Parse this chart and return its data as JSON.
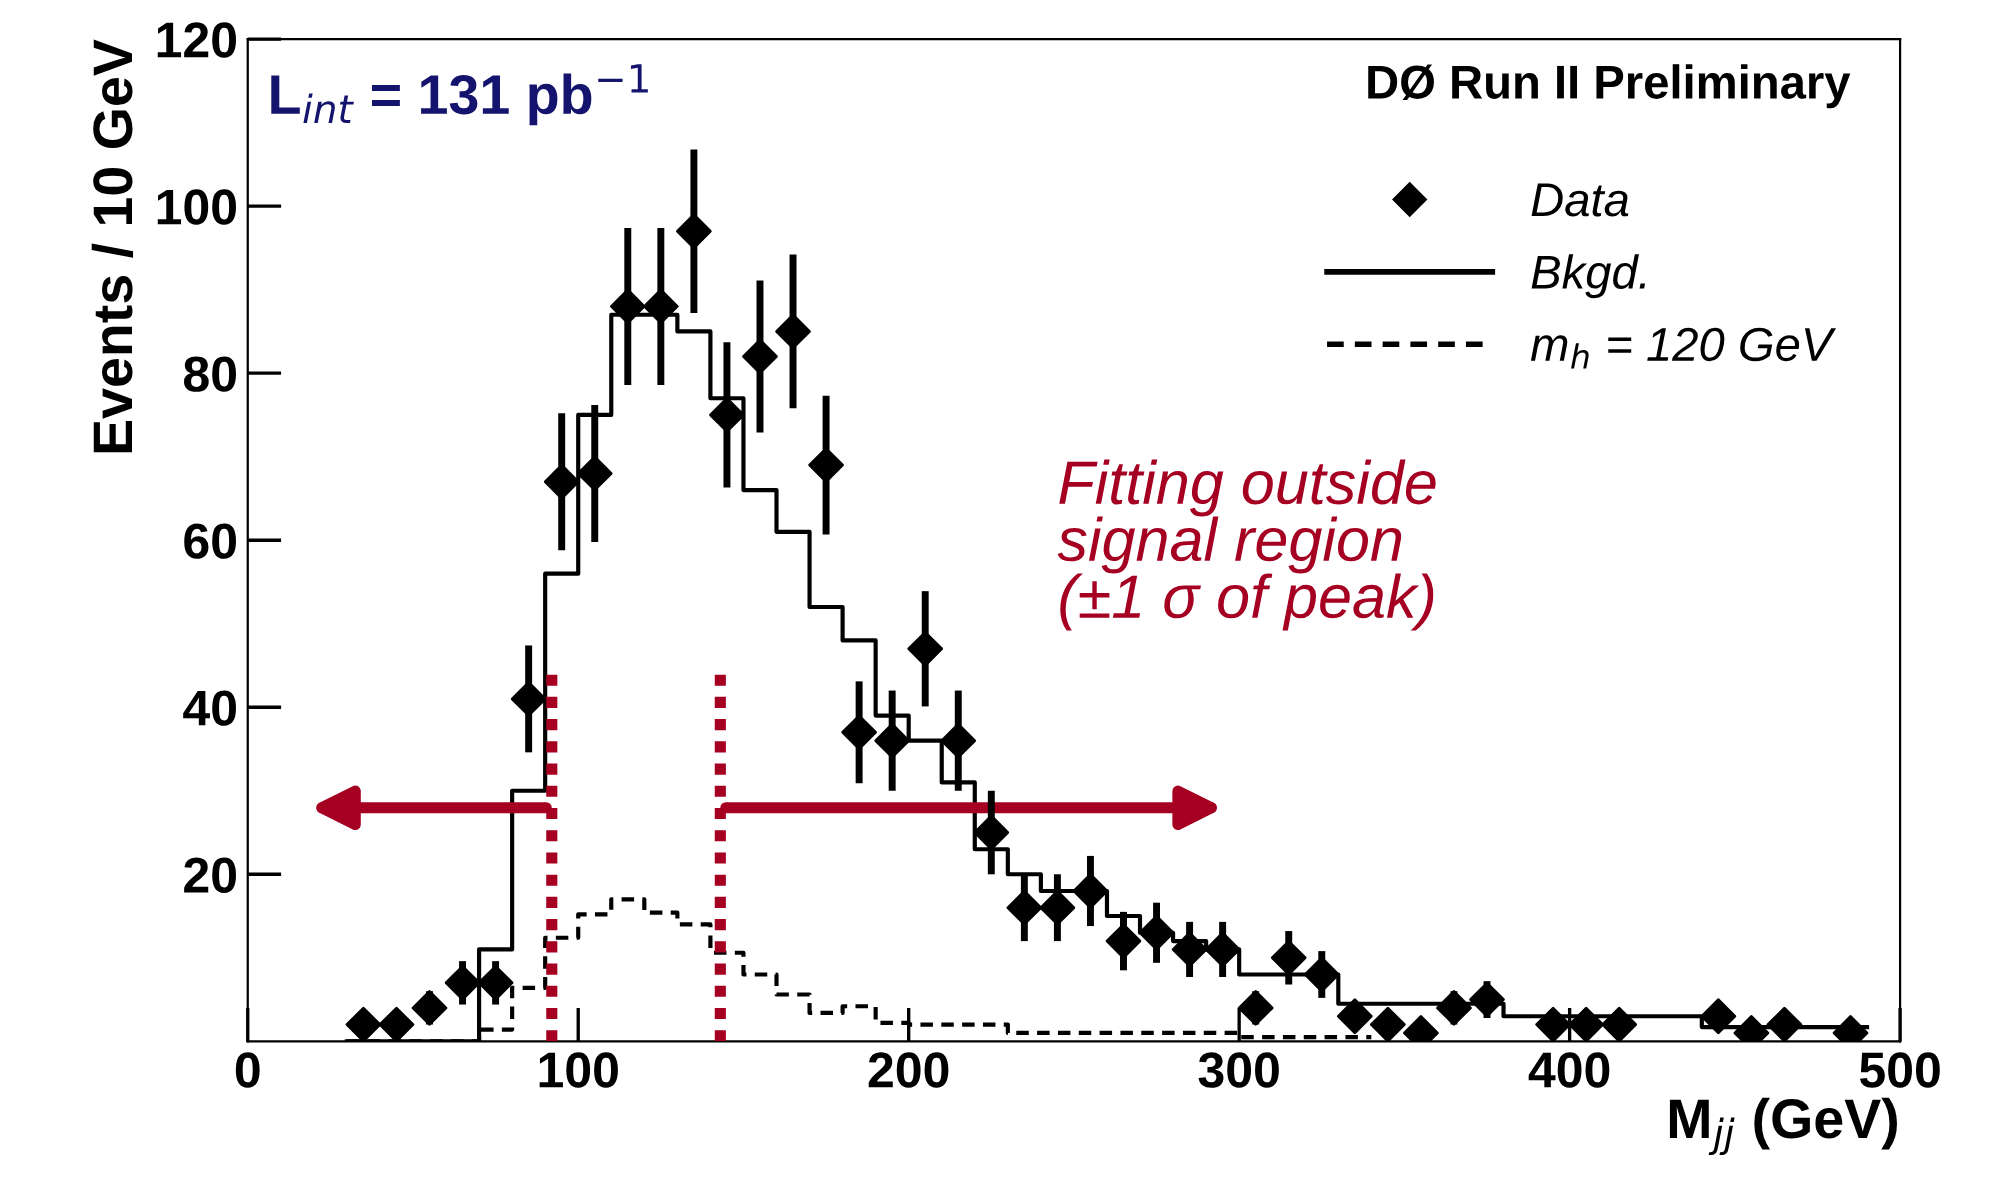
{
  "chart_data": {
    "type": "scatter",
    "xlabel": "M$_{jj}$ (GeV)",
    "ylabel": "Events / 10 GeV",
    "xlim": [
      0,
      500
    ],
    "ylim": [
      0,
      120
    ],
    "xticks": [
      0,
      100,
      200,
      300,
      400,
      500
    ],
    "yticks": [
      20,
      40,
      60,
      80,
      100,
      120
    ],
    "grid": false,
    "legend": "top right",
    "annotations": [
      "L$_{int}$ = 131 pb$^{−1}$",
      "DØ Run II Preliminary",
      "Fitting outside\nsignal region\n(±1 σ of peak)"
    ],
    "ref_lines": [
      {
        "axis": "x",
        "value": 92,
        "label": null,
        "color": "#a50021",
        "line_style": "dotted"
      },
      {
        "axis": "x",
        "value": 143,
        "label": null,
        "color": "#a50021",
        "line_style": "dotted"
      }
    ],
    "series": [
      {
        "name": "Data",
        "color": "#000000",
        "marker": "diamond",
        "x": [
          35,
          45,
          55,
          65,
          75,
          85,
          95,
          105,
          115,
          125,
          135,
          145,
          155,
          165,
          175,
          185,
          195,
          205,
          215,
          225,
          235,
          245,
          255,
          265,
          275,
          285,
          295,
          305,
          315,
          325,
          335,
          345,
          355,
          365,
          375,
          385,
          395,
          405,
          415,
          425,
          435,
          445,
          455,
          465,
          475,
          485
        ],
        "values": [
          2,
          2,
          4,
          7,
          7,
          41,
          67,
          68,
          88,
          88,
          97,
          75,
          82,
          85,
          69,
          37,
          36,
          47,
          36,
          25,
          16,
          16,
          18,
          12,
          13,
          11,
          11,
          4,
          10,
          8,
          3,
          2,
          1,
          4,
          5,
          null,
          2,
          2,
          2,
          null,
          null,
          3,
          1,
          2,
          null,
          1
        ],
        "errors": [
          1.4,
          1.4,
          2,
          2.6,
          2.6,
          6.4,
          8.2,
          8.2,
          9.4,
          9.4,
          9.8,
          8.7,
          9.1,
          9.2,
          8.3,
          6.1,
          6,
          6.9,
          6,
          5,
          4,
          4,
          4.2,
          3.5,
          3.6,
          3.3,
          3.3,
          2,
          3.2,
          2.8,
          1.7,
          1.4,
          1,
          2,
          2.2,
          null,
          1.4,
          1.4,
          1.4,
          null,
          null,
          1.7,
          1,
          1.4,
          null,
          1
        ]
      },
      {
        "name": "Bkgd.",
        "type": "step",
        "color": "#000000",
        "line_style": "solid",
        "x": [
          30,
          40,
          50,
          60,
          70,
          80,
          90,
          100,
          110,
          120,
          130,
          140,
          150,
          160,
          170,
          180,
          190,
          200,
          210,
          220,
          230,
          240,
          250,
          260,
          270,
          280,
          290,
          300,
          310,
          320,
          330,
          340,
          350,
          360,
          370,
          380,
          390,
          400,
          410,
          420,
          430,
          440,
          450,
          460,
          470,
          480,
          490
        ],
        "values": [
          0,
          0,
          0,
          0,
          11,
          30,
          56,
          75,
          87,
          87,
          85,
          77,
          66,
          61,
          52,
          48,
          39,
          36,
          31,
          23,
          20,
          18,
          18,
          15,
          13,
          12,
          11,
          8,
          8,
          8,
          4.5,
          4.5,
          4.5,
          4.5,
          4.5,
          3,
          3,
          3,
          3,
          3,
          3,
          1.7,
          1.7,
          1.7,
          1.7,
          1.7,
          1.7
        ]
      },
      {
        "name": "m$_{h}$ = 120 GeV",
        "type": "step",
        "color": "#000000",
        "line_style": "dashed",
        "x": [
          30,
          40,
          50,
          60,
          70,
          80,
          90,
          100,
          110,
          120,
          130,
          140,
          150,
          160,
          170,
          180,
          190,
          200,
          210,
          220,
          230,
          240,
          250,
          260,
          270,
          280,
          290,
          300,
          310,
          320,
          330,
          340
        ],
        "values": [
          0,
          0,
          0,
          0,
          1.4,
          6.4,
          12.4,
          15.2,
          17,
          15.4,
          14,
          10.6,
          8,
          5.6,
          3.4,
          4.2,
          2.2,
          2,
          2,
          2,
          1,
          1,
          1,
          1,
          1,
          1,
          1,
          0.5,
          0.5,
          0.5,
          0.5,
          0.5
        ]
      }
    ]
  }
}
